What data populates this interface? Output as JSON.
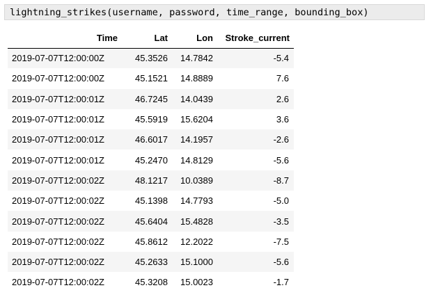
{
  "code_cell": {
    "text": "lightning_strikes(username, password, time_range, bounding_box)"
  },
  "table": {
    "columns": [
      "Time",
      "Lat",
      "Lon",
      "Stroke_current"
    ],
    "rows": [
      [
        "2019-07-07T12:00:00Z",
        "45.3526",
        "14.7842",
        "-5.4"
      ],
      [
        "2019-07-07T12:00:00Z",
        "45.1521",
        "14.8889",
        "7.6"
      ],
      [
        "2019-07-07T12:00:01Z",
        "46.7245",
        "14.0439",
        "2.6"
      ],
      [
        "2019-07-07T12:00:01Z",
        "45.5919",
        "15.6204",
        "3.6"
      ],
      [
        "2019-07-07T12:00:01Z",
        "46.6017",
        "14.1957",
        "-2.6"
      ],
      [
        "2019-07-07T12:00:01Z",
        "45.2470",
        "14.8129",
        "-5.6"
      ],
      [
        "2019-07-07T12:00:02Z",
        "48.1217",
        "10.0389",
        "-8.7"
      ],
      [
        "2019-07-07T12:00:02Z",
        "45.1398",
        "14.7793",
        "-5.0"
      ],
      [
        "2019-07-07T12:00:02Z",
        "45.6404",
        "15.4828",
        "-3.5"
      ],
      [
        "2019-07-07T12:00:02Z",
        "45.8612",
        "12.2022",
        "-7.5"
      ],
      [
        "2019-07-07T12:00:02Z",
        "45.2633",
        "15.1000",
        "-5.6"
      ],
      [
        "2019-07-07T12:00:02Z",
        "45.3208",
        "15.0023",
        "-1.7"
      ]
    ]
  },
  "colors": {
    "code_background": "#ececec",
    "row_stripe": "#f5f5f5",
    "header_rule": "#000000"
  }
}
